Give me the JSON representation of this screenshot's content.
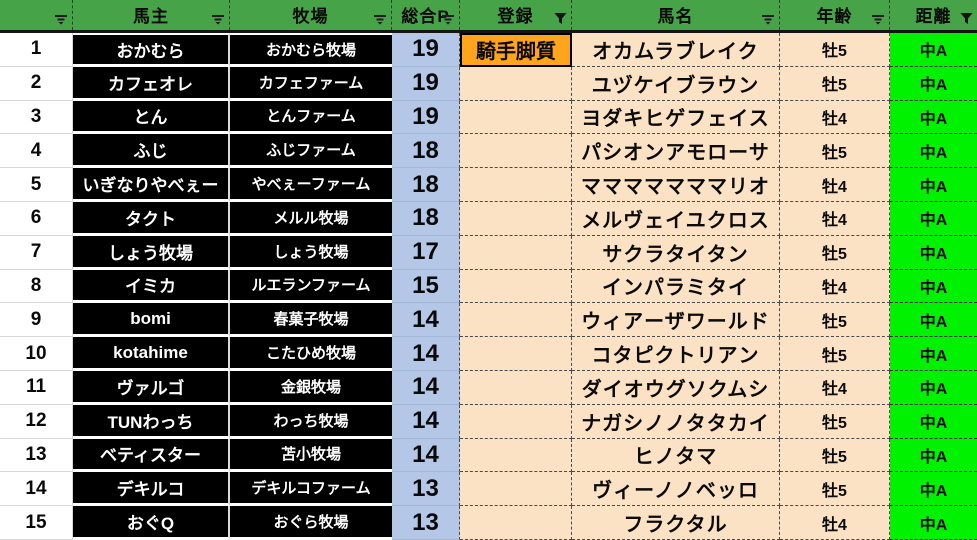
{
  "colors": {
    "header_green": "#46a347",
    "points_blue": "#b4c7e7",
    "peach": "#fce2c4",
    "orange": "#ffa41c",
    "bright_green": "#00f200",
    "owner_cell_black": "#000000"
  },
  "table": {
    "headers": [
      {
        "label": "",
        "filter": "dropdown"
      },
      {
        "label": "馬主",
        "filter": "dropdown"
      },
      {
        "label": "牧場",
        "filter": "dropdown"
      },
      {
        "label": "総合P",
        "filter": "dropdown"
      },
      {
        "label": "登録",
        "filter": "funnel"
      },
      {
        "label": "馬名",
        "filter": "dropdown"
      },
      {
        "label": "年齢",
        "filter": "dropdown"
      },
      {
        "label": "距離",
        "filter": "funnel"
      }
    ],
    "rows": [
      {
        "rank": "1",
        "owner": "おかむら",
        "farm": "おかむら牧場",
        "points": "19",
        "registration": "騎手脚質",
        "horse": "オカムラブレイク",
        "age": "牡5",
        "distance": "中A"
      },
      {
        "rank": "2",
        "owner": "カフェオレ",
        "farm": "カフェファーム",
        "points": "19",
        "registration": "",
        "horse": "ユヅケイブラウン",
        "age": "牡5",
        "distance": "中A"
      },
      {
        "rank": "3",
        "owner": "とん",
        "farm": "とんファーム",
        "points": "19",
        "registration": "",
        "horse": "ヨダキヒゲフェイス",
        "age": "牡4",
        "distance": "中A"
      },
      {
        "rank": "4",
        "owner": "ふじ",
        "farm": "ふじファーム",
        "points": "18",
        "registration": "",
        "horse": "パシオンアモローサ",
        "age": "牡5",
        "distance": "中A"
      },
      {
        "rank": "5",
        "owner": "いぎなりやべぇー",
        "farm": "やべぇーファーム",
        "points": "18",
        "registration": "",
        "horse": "マママママママリオ",
        "age": "牡4",
        "distance": "中A"
      },
      {
        "rank": "6",
        "owner": "タクト",
        "farm": "メルル牧場",
        "points": "18",
        "registration": "",
        "horse": "メルヴェイユクロス",
        "age": "牡4",
        "distance": "中A"
      },
      {
        "rank": "7",
        "owner": "しょう牧場",
        "farm": "しょう牧場",
        "points": "17",
        "registration": "",
        "horse": "サクラタイタン",
        "age": "牡5",
        "distance": "中A"
      },
      {
        "rank": "8",
        "owner": "イミカ",
        "farm": "ルエランファーム",
        "points": "15",
        "registration": "",
        "horse": "インパラミタイ",
        "age": "牡4",
        "distance": "中A"
      },
      {
        "rank": "9",
        "owner": "bomi",
        "farm": "春菓子牧場",
        "points": "14",
        "registration": "",
        "horse": "ウィアーザワールド",
        "age": "牡5",
        "distance": "中A"
      },
      {
        "rank": "10",
        "owner": "kotahime",
        "farm": "こたひめ牧場",
        "points": "14",
        "registration": "",
        "horse": "コタピクトリアン",
        "age": "牡5",
        "distance": "中A"
      },
      {
        "rank": "11",
        "owner": "ヴァルゴ",
        "farm": "金銀牧場",
        "points": "14",
        "registration": "",
        "horse": "ダイオウグソクムシ",
        "age": "牡4",
        "distance": "中A"
      },
      {
        "rank": "12",
        "owner": "TUNわっち",
        "farm": "わっち牧場",
        "points": "14",
        "registration": "",
        "horse": "ナガシノノタタカイ",
        "age": "牡5",
        "distance": "中A"
      },
      {
        "rank": "13",
        "owner": "ベティスター",
        "farm": "苫小牧場",
        "points": "14",
        "registration": "",
        "horse": "ヒノタマ",
        "age": "牡5",
        "distance": "中A"
      },
      {
        "rank": "14",
        "owner": "デキルコ",
        "farm": "デキルコファーム",
        "points": "13",
        "registration": "",
        "horse": "ヴィーノノベッロ",
        "age": "牡5",
        "distance": "中A"
      },
      {
        "rank": "15",
        "owner": "おぐQ",
        "farm": "おぐら牧場",
        "points": "13",
        "registration": "",
        "horse": "フラクタル",
        "age": "牡4",
        "distance": "中A"
      }
    ]
  }
}
